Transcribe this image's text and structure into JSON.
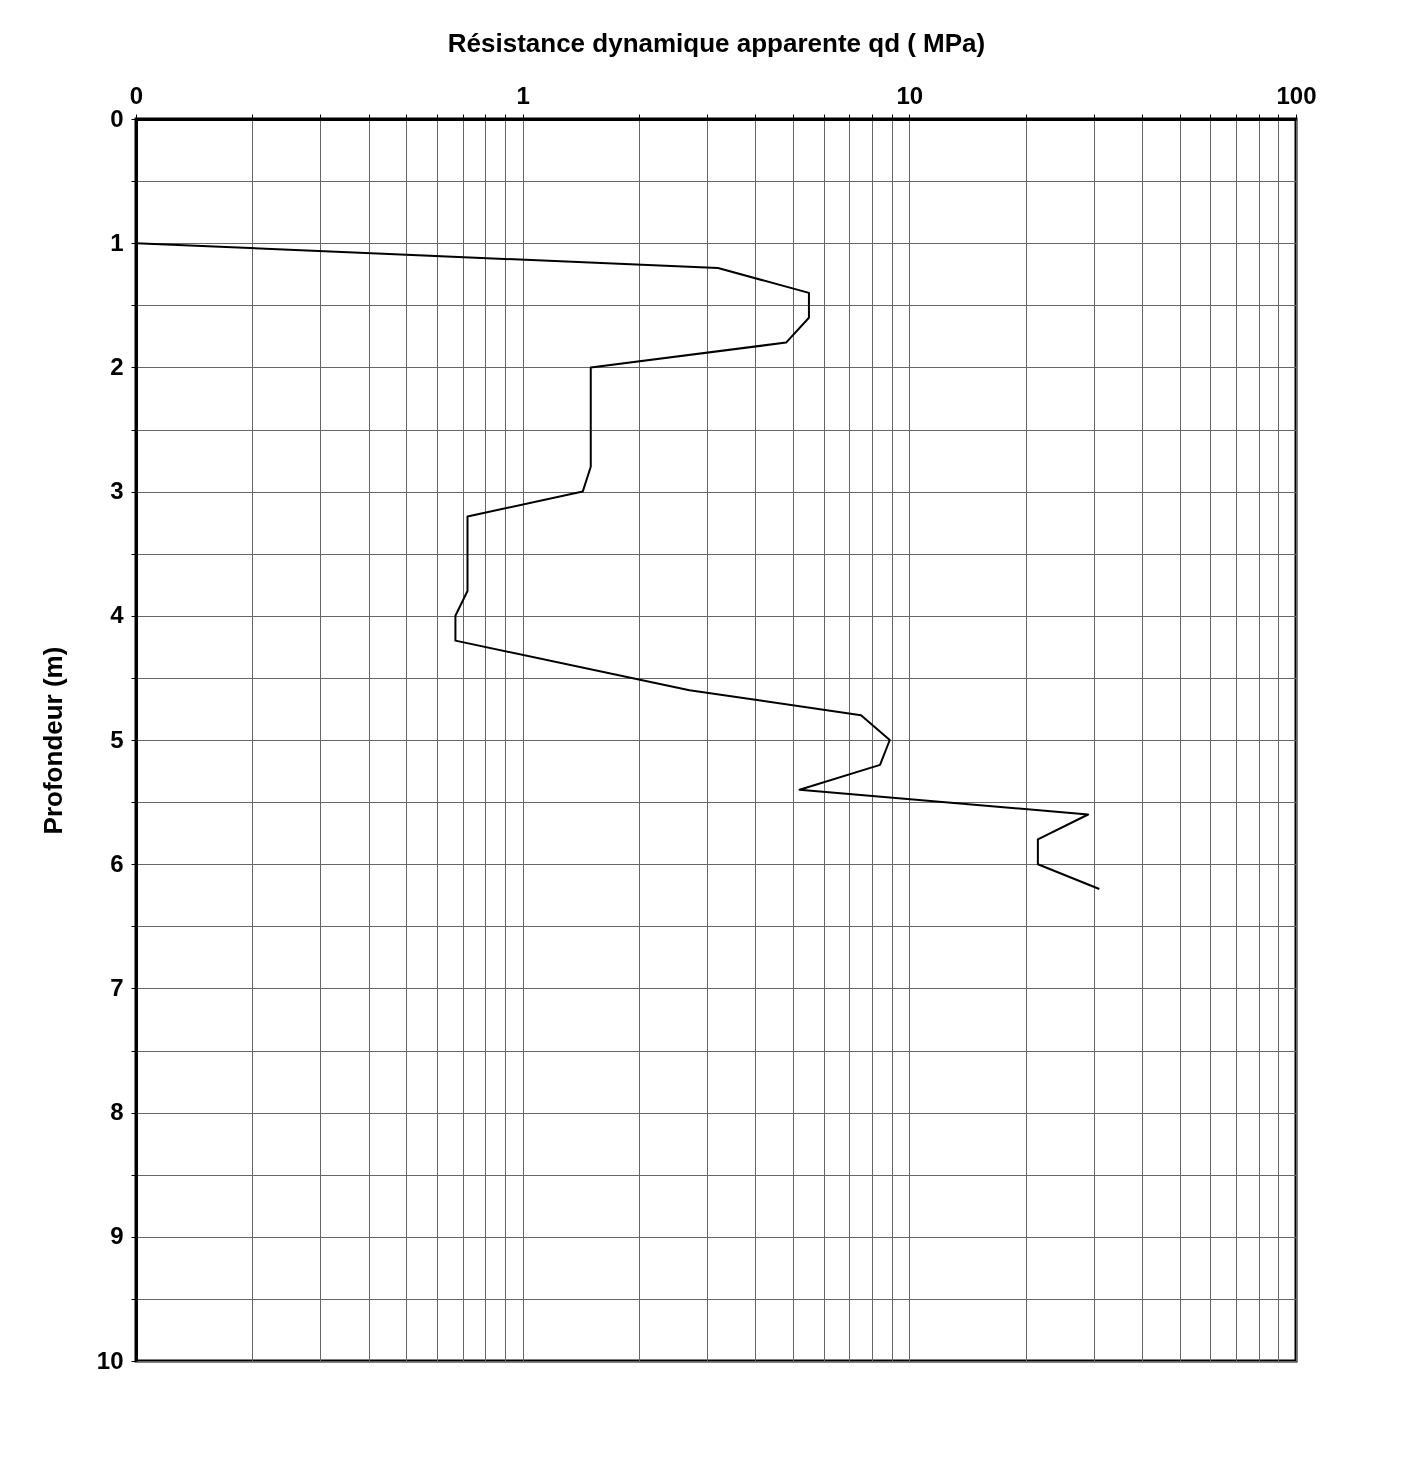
{
  "chart_data": {
    "type": "line",
    "xlabel": "Résistance dynamique apparente qd ( MPa)",
    "ylabel": "Profondeur (m)",
    "log": "x",
    "xlim": [
      0.1,
      100
    ],
    "ylim": [
      10,
      0
    ],
    "xticks": [
      {
        "value": 0.1,
        "label": "0"
      },
      {
        "value": 0.2,
        "label": null
      },
      {
        "value": 0.3,
        "label": null
      },
      {
        "value": 0.4,
        "label": null
      },
      {
        "value": 0.5,
        "label": null
      },
      {
        "value": 0.6,
        "label": null
      },
      {
        "value": 0.7,
        "label": null
      },
      {
        "value": 0.8,
        "label": null
      },
      {
        "value": 0.9,
        "label": null
      },
      1,
      {
        "value": 2,
        "label": null
      },
      {
        "value": 3,
        "label": null
      },
      {
        "value": 4,
        "label": null
      },
      {
        "value": 5,
        "label": null
      },
      {
        "value": 6,
        "label": null
      },
      {
        "value": 7,
        "label": null
      },
      {
        "value": 8,
        "label": null
      },
      {
        "value": 9,
        "label": null
      },
      10,
      {
        "value": 20,
        "label": null
      },
      {
        "value": 30,
        "label": null
      },
      {
        "value": 40,
        "label": null
      },
      {
        "value": 50,
        "label": null
      },
      {
        "value": 60,
        "label": null
      },
      {
        "value": 70,
        "label": null
      },
      {
        "value": 80,
        "label": null
      },
      {
        "value": 90,
        "label": null
      },
      100
    ],
    "yticks": [
      0,
      {
        "value": 0.5,
        "label": null
      },
      1,
      {
        "value": 1.5,
        "label": null
      },
      2,
      {
        "value": 2.5,
        "label": null
      },
      3,
      {
        "value": 3.5,
        "label": null
      },
      4,
      {
        "value": 4.5,
        "label": null
      },
      5,
      {
        "value": 5.5,
        "label": null
      },
      6,
      {
        "value": 6.5,
        "label": null
      },
      7,
      {
        "value": 7.5,
        "label": null
      },
      8,
      {
        "value": 8.5,
        "label": null
      },
      9,
      {
        "value": 9.5,
        "label": null
      },
      10
    ],
    "grid": true,
    "series": [
      {
        "color": "#000000",
        "x": [
          0.1,
          3.2,
          5.5,
          5.5,
          4.8,
          1.5,
          1.5,
          1.43,
          0.72,
          0.72,
          0.67,
          0.67,
          2.7,
          7.5,
          8.9,
          8.4,
          5.2,
          29,
          21.5,
          21.5,
          31
        ],
        "values": [
          1.0,
          1.2,
          1.4,
          1.6,
          1.8,
          2.0,
          2.8,
          3.0,
          3.2,
          3.8,
          4.0,
          4.2,
          4.6,
          4.8,
          5.0,
          5.2,
          5.4,
          5.6,
          5.8,
          6.0,
          6.2
        ]
      }
    ]
  }
}
